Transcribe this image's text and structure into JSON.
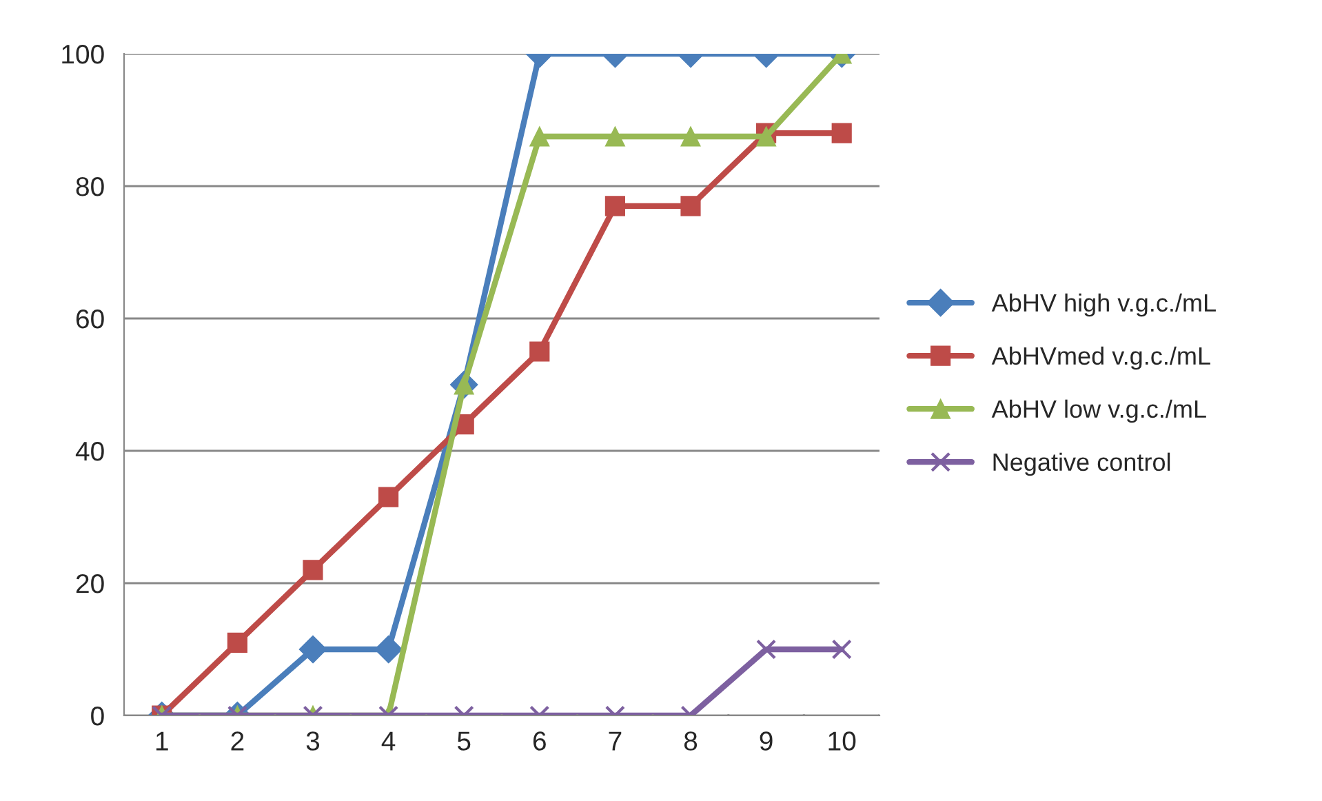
{
  "chart_data": {
    "type": "line",
    "categories": [
      "1",
      "2",
      "3",
      "4",
      "5",
      "6",
      "7",
      "8",
      "9",
      "10"
    ],
    "series": [
      {
        "name": "AbHV high v.g.c./mL",
        "color": "#4a7ebb",
        "marker": "diamond",
        "values": [
          0,
          0,
          10,
          10,
          50,
          100,
          100,
          100,
          100,
          100
        ]
      },
      {
        "name": "AbHVmed v.g.c./mL",
        "color": "#be4b48",
        "marker": "square",
        "values": [
          0,
          11,
          22,
          33,
          44,
          55,
          77,
          77,
          88,
          88
        ]
      },
      {
        "name": "AbHV low v.g.c./mL",
        "color": "#98b954",
        "marker": "triangle",
        "values": [
          0,
          0,
          0,
          0,
          50,
          87.5,
          87.5,
          87.5,
          87.5,
          100
        ]
      },
      {
        "name": "Negative control",
        "color": "#7d60a0",
        "marker": "cross",
        "values": [
          0,
          0,
          0,
          0,
          0,
          0,
          0,
          0,
          10,
          10
        ]
      }
    ],
    "ylim": [
      0,
      100
    ],
    "yticks": [
      0,
      20,
      40,
      60,
      80,
      100
    ],
    "grid": "y",
    "legend": "right",
    "line_style": "solid"
  }
}
